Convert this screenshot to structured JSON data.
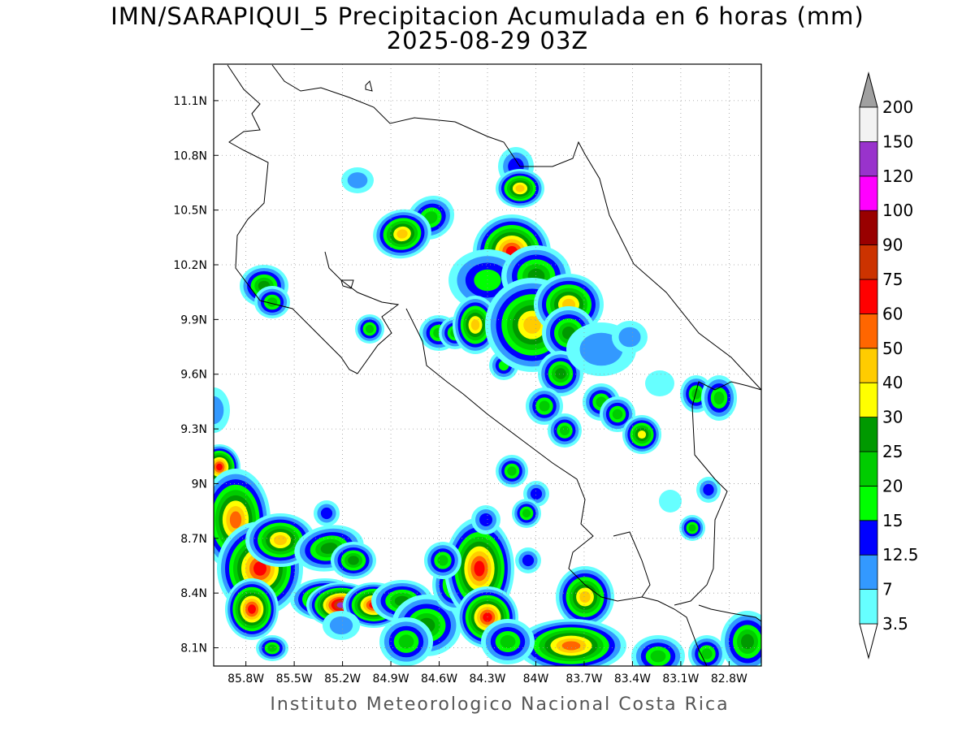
{
  "title": {
    "line1": "IMN/SARAPIQUI_5 Precipitacion Acumulada en 6 horas (mm)",
    "line2": "2025-08-29 03Z"
  },
  "footer": "Instituto Meteorologico Nacional Costa Rica",
  "map": {
    "lon_range": [
      -86.0,
      -82.6
    ],
    "lat_range": [
      8.0,
      11.3
    ],
    "x_ticks": [
      "85.8W",
      "85.5W",
      "85.2W",
      "84.9W",
      "84.6W",
      "84.3W",
      "84W",
      "83.7W",
      "83.4W",
      "83.1W",
      "82.8W"
    ],
    "x_tick_values": [
      -85.8,
      -85.5,
      -85.2,
      -84.9,
      -84.6,
      -84.3,
      -84.0,
      -83.7,
      -83.4,
      -83.1,
      -82.8
    ],
    "y_ticks": [
      "8.1N",
      "8.4N",
      "8.7N",
      "9N",
      "9.3N",
      "9.6N",
      "9.9N",
      "10.2N",
      "10.5N",
      "10.8N",
      "11.1N"
    ],
    "y_tick_values": [
      8.1,
      8.4,
      8.7,
      9.0,
      9.3,
      9.6,
      9.9,
      10.2,
      10.5,
      10.8,
      11.1
    ],
    "grid": true
  },
  "colorbar": {
    "labels": [
      "3.5",
      "7",
      "12.5",
      "15",
      "20",
      "25",
      "30",
      "40",
      "50",
      "60",
      "75",
      "90",
      "100",
      "120",
      "150",
      "200"
    ],
    "colors": [
      "#66ffff",
      "#3399ff",
      "#0000ff",
      "#00ff00",
      "#00cc00",
      "#009900",
      "#ffff00",
      "#ffcc00",
      "#ff6600",
      "#ff0000",
      "#cc3300",
      "#990000",
      "#ff00ff",
      "#9933cc",
      "#f2f2f2"
    ],
    "top_arrow_color": "#a0a0a0",
    "bottom_arrow_color": "#ffffff"
  },
  "precip_levels": [
    "#66ffff",
    "#3399ff",
    "#0000ff",
    "#00ff00",
    "#00cc00",
    "#009900",
    "#ffff00",
    "#ffcc00",
    "#ff6600",
    "#ff0000",
    "#cc3300",
    "#9933cc"
  ]
}
